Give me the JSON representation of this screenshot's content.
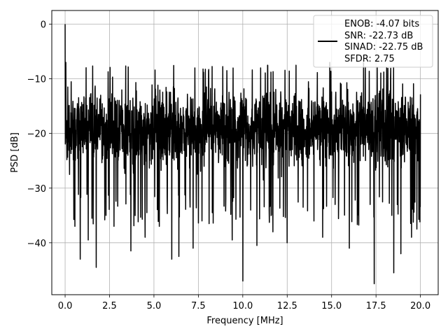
{
  "chart_data": {
    "type": "line",
    "title": "",
    "xlabel": "Frequency [MHz]",
    "ylabel": "PSD [dB]",
    "xlim": [
      -0.75,
      21.0
    ],
    "ylim": [
      -49.5,
      2.5
    ],
    "xticks": [
      0.0,
      2.5,
      5.0,
      7.5,
      10.0,
      12.5,
      15.0,
      17.5,
      20.0
    ],
    "xtick_labels": [
      "0.0",
      "2.5",
      "5.0",
      "7.5",
      "10.0",
      "12.5",
      "15.0",
      "17.5",
      "20.0"
    ],
    "yticks": [
      0,
      -10,
      -20,
      -30,
      -40
    ],
    "ytick_labels": [
      "0",
      "−10",
      "−20",
      "−30",
      "−40"
    ],
    "grid": true,
    "legend_position": "top-right",
    "legend_text": [
      "ENOB: -4.07 bits",
      "SNR: -22.73 dB",
      "SINAD: -22.75 dB",
      "SFDR: 2.75"
    ],
    "series": [
      {
        "color": "#000000",
        "x_range": [
          0.0,
          20.0
        ],
        "num_points": 2000,
        "typical_band": [
          -29,
          -9
        ],
        "peak": {
          "x": 0.0,
          "y": 0.0
        },
        "dips": [
          {
            "x": 0.25,
            "y": -27.5
          },
          {
            "x": 0.55,
            "y": -37.0
          },
          {
            "x": 0.85,
            "y": -43.0
          },
          {
            "x": 1.3,
            "y": -39.5
          },
          {
            "x": 1.75,
            "y": -44.5
          },
          {
            "x": 2.3,
            "y": -35.0
          },
          {
            "x": 2.75,
            "y": -37.0
          },
          {
            "x": 3.7,
            "y": -41.5
          },
          {
            "x": 4.5,
            "y": -39.0
          },
          {
            "x": 4.6,
            "y": -34.5
          },
          {
            "x": 5.3,
            "y": -37.0
          },
          {
            "x": 6.0,
            "y": -43.0
          },
          {
            "x": 6.4,
            "y": -42.5
          },
          {
            "x": 7.2,
            "y": -41.0
          },
          {
            "x": 7.7,
            "y": -36.0
          },
          {
            "x": 8.1,
            "y": -36.5
          },
          {
            "x": 9.4,
            "y": -39.5
          },
          {
            "x": 10.0,
            "y": -47.0
          },
          {
            "x": 10.8,
            "y": -40.5
          },
          {
            "x": 11.7,
            "y": -38.0
          },
          {
            "x": 12.5,
            "y": -40.0
          },
          {
            "x": 13.4,
            "y": -33.5
          },
          {
            "x": 14.5,
            "y": -39.0
          },
          {
            "x": 15.2,
            "y": -33.0
          },
          {
            "x": 16.0,
            "y": -41.0
          },
          {
            "x": 16.8,
            "y": -38.0
          },
          {
            "x": 17.4,
            "y": -47.5
          },
          {
            "x": 18.5,
            "y": -45.5
          },
          {
            "x": 18.9,
            "y": -42.0
          },
          {
            "x": 19.5,
            "y": -39.0
          },
          {
            "x": 19.8,
            "y": -37.5
          }
        ],
        "spikes_up": [
          {
            "x": 0.04,
            "y": -7.0
          },
          {
            "x": 0.15,
            "y": -11.5
          },
          {
            "x": 7.3,
            "y": -8.0
          },
          {
            "x": 9.1,
            "y": -8.5
          },
          {
            "x": 11.4,
            "y": -7.5
          },
          {
            "x": 13.0,
            "y": -7.5
          },
          {
            "x": 14.9,
            "y": -7.0
          },
          {
            "x": 16.8,
            "y": -7.0
          }
        ]
      }
    ]
  }
}
